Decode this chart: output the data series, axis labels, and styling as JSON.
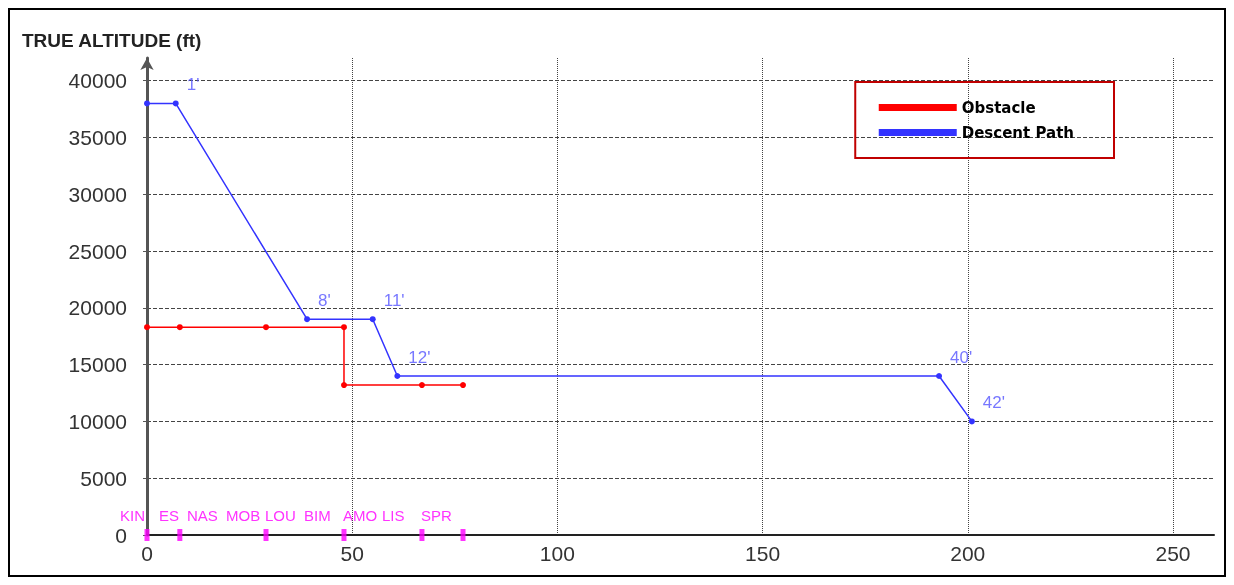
{
  "chart_data": {
    "type": "line",
    "ylabel": "TRUE ALTITUDE (ft)",
    "xlim": [
      0,
      260
    ],
    "xticks": [
      0,
      50,
      100,
      150,
      200,
      250
    ],
    "ylim": [
      0,
      42000
    ],
    "yticks": [
      0,
      5000,
      10000,
      15000,
      20000,
      25000,
      30000,
      35000,
      40000
    ],
    "grid": true,
    "legend": "top right",
    "marker": "circle",
    "line_style": "solid",
    "series": [
      {
        "name": "Obstacle",
        "color": "#ff0000",
        "x": [
          0,
          8,
          29,
          48,
          48,
          67,
          77
        ],
        "values": [
          18300,
          18300,
          18300,
          18300,
          13200,
          13200,
          13200
        ]
      },
      {
        "name": "Descent Path",
        "color": "#3333ff",
        "x": [
          0,
          7,
          39,
          55,
          61,
          193,
          201
        ],
        "values": [
          38000,
          38000,
          19000,
          19000,
          14000,
          14000,
          10000
        ]
      },
      {
        "type": "scatter",
        "color": "#ff00ff",
        "marker": "square",
        "x": [
          0,
          8,
          29,
          48,
          67,
          77
        ],
        "values": [
          0,
          0,
          0,
          0,
          0,
          0
        ]
      }
    ],
    "annotations": [
      {
        "text": "1'",
        "x": 7,
        "y": 38000
      },
      {
        "text": "8'",
        "x": 39,
        "y": 19000
      },
      {
        "text": "11'",
        "x": 55,
        "y": 19000
      },
      {
        "text": "12'",
        "x": 61,
        "y": 14000
      },
      {
        "text": "40'",
        "x": 193,
        "y": 14000
      },
      {
        "text": "42'",
        "x": 201,
        "y": 10000
      },
      "KIN",
      "ES",
      "NAS",
      "MOB",
      "LOU",
      "BIM",
      "AMO",
      "LIS",
      "SPR"
    ]
  }
}
